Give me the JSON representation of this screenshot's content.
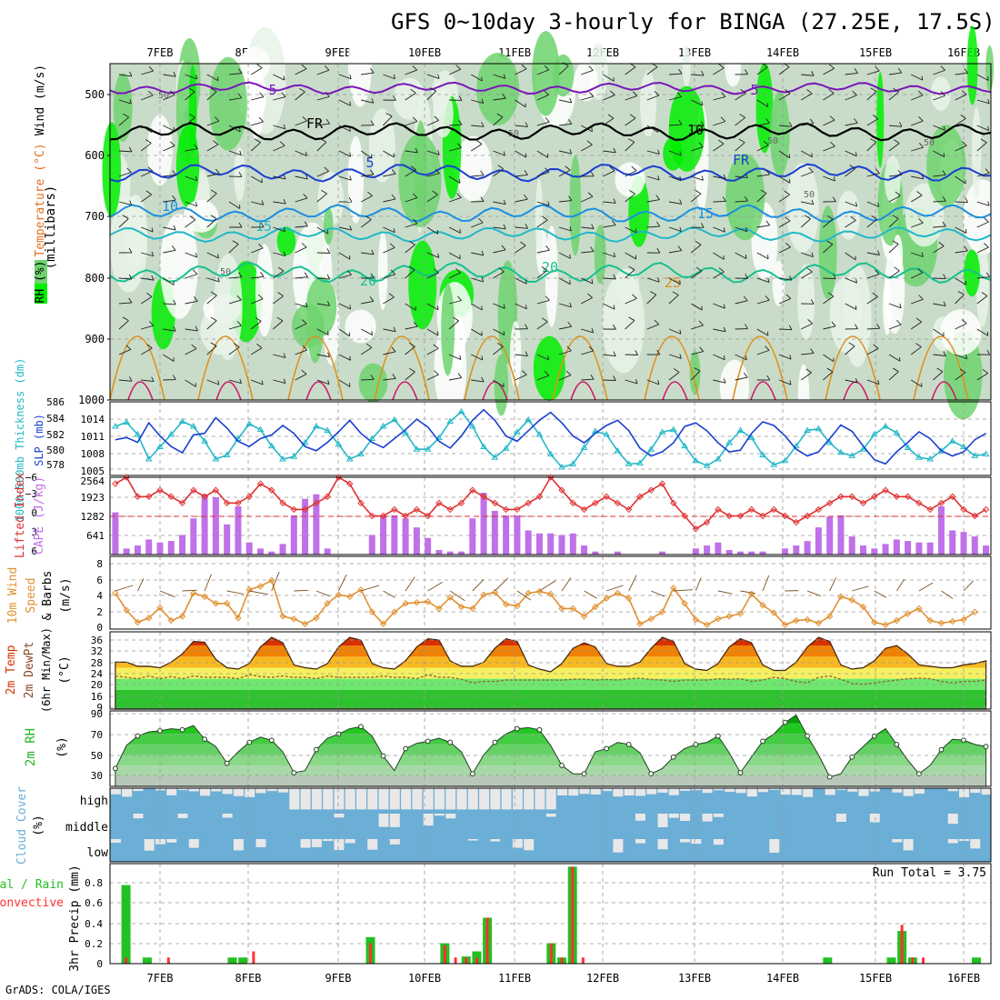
{
  "title": "GFS 0~10day 3-hourly for BINGA (27.25E, 17.5S)",
  "footer": "GrADS: COLA/IGES",
  "dates": [
    "7FEB",
    "8FEB",
    "9FEB",
    "10FEB",
    "11FEB",
    "12FEB",
    "13FEB",
    "14FEB",
    "15FEB",
    "16FEB"
  ],
  "colors": {
    "rh_dark": "#00ee00",
    "rh_mid": "#6fd36f",
    "rh_light": "#c9dcc9",
    "rh_pale": "#e9f3e9",
    "sst": "#1a3fd0",
    "thk": "#22b8c8",
    "li": "#e03030",
    "cape": "#c070e8",
    "wind": "#e09030",
    "temp_hot": "#d83000",
    "dew": "#8b6b3a",
    "rh2m": "#22b822",
    "cloud": "#6baed6",
    "cloud_gap": "#e8e8e8",
    "precip_total": "#22c022",
    "precip_conv": "#ff3030"
  },
  "upper": {
    "yaxis_title": "(millibars)",
    "ticks": [
      "500",
      "600",
      "700",
      "800",
      "900",
      "1000"
    ],
    "legend": [
      "RH (%)",
      "Temperature (°C)",
      "Wind (m/s)"
    ],
    "isotherm_labels": [
      "5",
      "5",
      "5",
      "FR",
      "FR",
      "10",
      "10",
      "15",
      "15",
      "20",
      "20",
      "25"
    ],
    "rh_labels": [
      "50",
      "50",
      "50",
      "50",
      "50",
      "50"
    ]
  },
  "slp": {
    "left_label": "1000−500mb Thickness (dm)",
    "right_label": "SLP (mb)",
    "left_ticks": [
      "586",
      "584",
      "582",
      "580",
      "578"
    ],
    "right_ticks": [
      "1014",
      "1011",
      "1008",
      "1005"
    ],
    "chart_data": {
      "type": "line",
      "series": [
        {
          "name": "SLP",
          "values": [
            1009.8,
            1010.2,
            1009.3,
            1013,
            1010.5,
            1008.5,
            1007.3,
            1010.7,
            1011,
            1014,
            1012,
            1009.5,
            1008.5,
            1010,
            1010.7,
            1012.5,
            1011,
            1008.5,
            1007.7,
            1009.3,
            1011.3,
            1013.5,
            1011,
            1009.3,
            1008.3,
            1010,
            1011.7,
            1013.7,
            1012.2,
            1009.5,
            1008.2,
            1010.5,
            1013.5,
            1015.5,
            1013.5,
            1010.5,
            1009.5,
            1011.5,
            1013.5,
            1015,
            1013,
            1010.5,
            1009.2,
            1011,
            1012.5,
            1013.5,
            1011.5,
            1008.2,
            1006.7,
            1007.5,
            1009.2,
            1012.3,
            1013,
            1011.5,
            1009.2,
            1007.5,
            1007.8,
            1011,
            1013.2,
            1012.5,
            1010.5,
            1008,
            1006.7,
            1007.5,
            1010,
            1012.6,
            1011.4,
            1008.6,
            1006,
            1005.2,
            1007.5,
            1009.3,
            1011.3,
            1010,
            1007.7,
            1006.7,
            1007.5,
            1009.8,
            1011
          ]
        },
        {
          "name": "Thickness",
          "values": [
            583,
            583.5,
            582,
            579,
            580.5,
            582,
            583.6,
            583,
            581.2,
            579,
            579.5,
            581.5,
            583.3,
            582.6,
            580.6,
            579,
            579.3,
            581,
            583,
            582.5,
            580.8,
            579,
            579.6,
            581.5,
            583,
            583.8,
            582.2,
            580.2,
            580.2,
            581.6,
            583.6,
            584.8,
            583,
            580.5,
            579.2,
            580.3,
            582.3,
            583.8,
            582,
            579.6,
            578,
            578.4,
            580.4,
            582.4,
            582,
            580,
            578.4,
            578.5,
            580.2,
            582.3,
            582.6,
            580.6,
            578.8,
            578.2,
            579,
            581,
            582.5,
            581.6,
            579.5,
            578.3,
            578.8,
            580.6,
            582.5,
            582.7,
            581,
            579.8,
            579.4,
            580.2,
            582,
            583,
            582.2,
            580.4,
            579.2,
            579,
            580,
            581.2,
            580.5,
            579.4,
            579.6
          ]
        }
      ]
    }
  },
  "cape": {
    "left_label": "Lifted Index",
    "right_label": "CAPE (J/kg)",
    "left_ticks": [
      "−6",
      "−3",
      "0",
      "3",
      "6"
    ],
    "right_ticks": [
      "2564",
      "1923",
      "1282",
      "641"
    ],
    "chart_data": {
      "type": "bar",
      "series": [
        {
          "name": "Lifted Index",
          "values": [
            -5,
            -6,
            -3,
            -3,
            -4,
            -3,
            -2,
            -4,
            -3,
            -4,
            -2,
            -2,
            -3,
            -5,
            -4,
            -2,
            -1,
            -1,
            -2,
            -3,
            -6,
            -5,
            -2,
            0,
            0,
            -1,
            0,
            -1,
            0,
            -2,
            -1,
            -2,
            -4,
            -3,
            -2,
            -1,
            -1,
            -2,
            -3,
            -6,
            -4,
            -2,
            -1,
            -2,
            -3,
            -2,
            -1,
            -3,
            -4,
            -5,
            -2,
            0,
            2,
            1,
            -1,
            0,
            0,
            -1,
            0,
            -1,
            0,
            1,
            0,
            -1,
            -2,
            -3,
            -3,
            -2,
            -3,
            -4,
            -3,
            -3,
            -2,
            -1,
            -2,
            -3,
            -1,
            0,
            -1
          ]
        },
        {
          "name": "CAPE",
          "values": [
            1400,
            200,
            300,
            500,
            400,
            450,
            650,
            1200,
            2000,
            1900,
            1000,
            1600,
            400,
            200,
            100,
            350,
            1300,
            1850,
            2000,
            200,
            0,
            0,
            0,
            650,
            1300,
            1300,
            1200,
            900,
            550,
            150,
            100,
            100,
            1200,
            2050,
            1450,
            1300,
            1300,
            800,
            700,
            700,
            650,
            700,
            300,
            100,
            0,
            100,
            0,
            0,
            0,
            100,
            0,
            0,
            200,
            300,
            400,
            150,
            100,
            100,
            100,
            0,
            200,
            300,
            450,
            900,
            1250,
            1300,
            600,
            300,
            200,
            350,
            500,
            450,
            400,
            400,
            1600,
            800,
            750,
            600,
            300,
            150
          ]
        }
      ]
    }
  },
  "wind": {
    "left_label": "10m Wind Speed & Barbs",
    "units": "(m/s)",
    "ticks": [
      "8",
      "6",
      "4",
      "2",
      "0"
    ],
    "chart_data": {
      "type": "line",
      "series": [
        {
          "name": "10m Wind Speed",
          "values": [
            4.2,
            2.2,
            0.8,
            1.3,
            2.5,
            1,
            1.5,
            4.2,
            3.8,
            3,
            3,
            1.3,
            4.6,
            5,
            5.7,
            1.5,
            1.2,
            0.6,
            1.3,
            3,
            4,
            3.8,
            4.6,
            2,
            0.6,
            2,
            3,
            3.1,
            3.2,
            2.4,
            3.7,
            2.6,
            2.4,
            4,
            4.3,
            2.9,
            2.7,
            4.2,
            4.4,
            4.1,
            2.4,
            2.4,
            1.5,
            2.6,
            3.6,
            4.2,
            3.6,
            0.6,
            1.2,
            2,
            4.8,
            3,
            1.1,
            0.5,
            1.2,
            1.5,
            1.8,
            4.1,
            2.8,
            1.9,
            0.5,
            1,
            1.1,
            0.7,
            1.5,
            3.8,
            3.4,
            2.6,
            0.8,
            0.5,
            1,
            1.8,
            2.4,
            1,
            0.7,
            0.9,
            1.1,
            2
          ]
        }
      ]
    }
  },
  "temp": {
    "left_label": "2m Temp 2m DewPt (6hr Min/Max)",
    "units": "(°C)",
    "ticks": [
      "36",
      "32",
      "28",
      "24",
      "20",
      "16",
      "9"
    ],
    "chart_data": {
      "type": "area",
      "series": [
        {
          "name": "2m Temp",
          "values": [
            26,
            26,
            24.5,
            24.5,
            24,
            26,
            29,
            33.5,
            33.2,
            27,
            24,
            23.5,
            25.5,
            31.5,
            35,
            33,
            25,
            24,
            23.5,
            25.5,
            31.5,
            35,
            34,
            25.5,
            24,
            23.5,
            26.5,
            31.5,
            34.5,
            34,
            26.5,
            24.5,
            24.5,
            26,
            31,
            34.5,
            33.5,
            25,
            23.5,
            22.5,
            25.5,
            31,
            33,
            31.5,
            25.5,
            24.5,
            24.5,
            26,
            31,
            35,
            33.5,
            25.5,
            23.5,
            23,
            25.5,
            31.5,
            34.5,
            33,
            25,
            23,
            23,
            26,
            31.5,
            35,
            33.5,
            25,
            23.5,
            24,
            26.5,
            31,
            32,
            29,
            25,
            24.5,
            24,
            24,
            25,
            25.5,
            26.5
          ]
        },
        {
          "name": "2m DewPt",
          "values": [
            21,
            20.5,
            20,
            21,
            20,
            20.8,
            20,
            21,
            20.5,
            20.5,
            20.5,
            20,
            21.5,
            20.8,
            20.5,
            21,
            20.5,
            20.5,
            20,
            21,
            20.5,
            20.5,
            20.5,
            20.5,
            21,
            20.5,
            20.5,
            20,
            21.5,
            20.5,
            20.5,
            19.8,
            18.5,
            19,
            19,
            19.5,
            19.5,
            19.5,
            19.5,
            19.5,
            19.5,
            19.8,
            19.8,
            19.5,
            19.7,
            19.5,
            20,
            20.2,
            19.7,
            19.5,
            19,
            19.5,
            19.5,
            19.5,
            20,
            19.8,
            20,
            19,
            19.5,
            20.5,
            20,
            19,
            18.5,
            20.5,
            21,
            19.8,
            18.3,
            18,
            18.5,
            19,
            19.5,
            20,
            20.2,
            20,
            19,
            18.5,
            19,
            19,
            19.5
          ]
        }
      ]
    }
  },
  "rh2m": {
    "left_label": "2m RH",
    "units": "(%)",
    "ticks": [
      "90",
      "70",
      "50",
      "30"
    ],
    "chart_data": {
      "type": "area",
      "series": [
        {
          "name": "2m RH",
          "values": [
            37,
            59,
            68,
            72,
            73,
            75,
            74,
            78,
            65,
            58,
            42,
            53,
            62,
            67,
            64,
            53,
            33,
            35,
            55,
            66,
            70,
            75,
            77,
            68,
            49,
            35,
            56,
            61,
            63,
            66,
            62,
            53,
            32,
            50,
            62,
            70,
            75,
            76,
            74,
            59,
            40,
            32,
            32,
            53,
            56,
            62,
            60,
            52,
            32,
            37,
            48,
            56,
            60,
            62,
            68,
            52,
            33,
            48,
            63,
            70,
            81,
            88,
            68,
            50,
            29,
            32,
            48,
            58,
            68,
            75,
            60,
            45,
            32,
            40,
            55,
            65,
            64,
            60,
            58
          ]
        }
      ]
    }
  },
  "cloud": {
    "left_label": "Cloud Cover",
    "units": "(%)",
    "levels": [
      "high",
      "middle",
      "low"
    ]
  },
  "precip": {
    "left_label": "Total / Rain Convective",
    "units": "3hr Precip (mm)",
    "run_total": "Run Total = 3.75",
    "ticks": [
      "0.8",
      "0.6",
      "0.4",
      "0.2",
      "0"
    ],
    "chart_data": {
      "type": "bar",
      "series": [
        {
          "name": "Total",
          "values": [
            0,
            0.77,
            0,
            0.06,
            0,
            0,
            0,
            0,
            0,
            0,
            0,
            0.06,
            0.06,
            0,
            0,
            0,
            0,
            0,
            0,
            0,
            0,
            0,
            0,
            0,
            0.26,
            0,
            0,
            0,
            0,
            0,
            0,
            0.2,
            0,
            0.07,
            0.12,
            0.45,
            0,
            0,
            0,
            0,
            0,
            0.2,
            0.06,
            0.95,
            0,
            0,
            0,
            0,
            0,
            0,
            0,
            0,
            0,
            0,
            0,
            0,
            0,
            0,
            0,
            0,
            0,
            0,
            0,
            0,
            0,
            0,
            0,
            0.06,
            0,
            0,
            0,
            0,
            0,
            0.06,
            0.32,
            0.06,
            0,
            0,
            0,
            0,
            0,
            0.06,
            0,
            0
          ]
        },
        {
          "name": "Convective",
          "values": [
            0,
            0.06,
            0,
            0,
            0,
            0.06,
            0,
            0,
            0,
            0,
            0,
            0,
            0,
            0.12,
            0,
            0,
            0,
            0,
            0,
            0,
            0,
            0,
            0,
            0,
            0.2,
            0,
            0,
            0,
            0,
            0,
            0,
            0.18,
            0.06,
            0.06,
            0.06,
            0.45,
            0,
            0,
            0,
            0,
            0,
            0.2,
            0.06,
            0.95,
            0.06,
            0,
            0,
            0,
            0,
            0,
            0,
            0,
            0,
            0,
            0,
            0,
            0,
            0,
            0,
            0,
            0,
            0,
            0,
            0,
            0,
            0,
            0,
            0,
            0,
            0,
            0,
            0,
            0,
            0,
            0.38,
            0.06,
            0.06,
            0,
            0,
            0,
            0,
            0,
            0,
            0
          ]
        }
      ]
    }
  }
}
